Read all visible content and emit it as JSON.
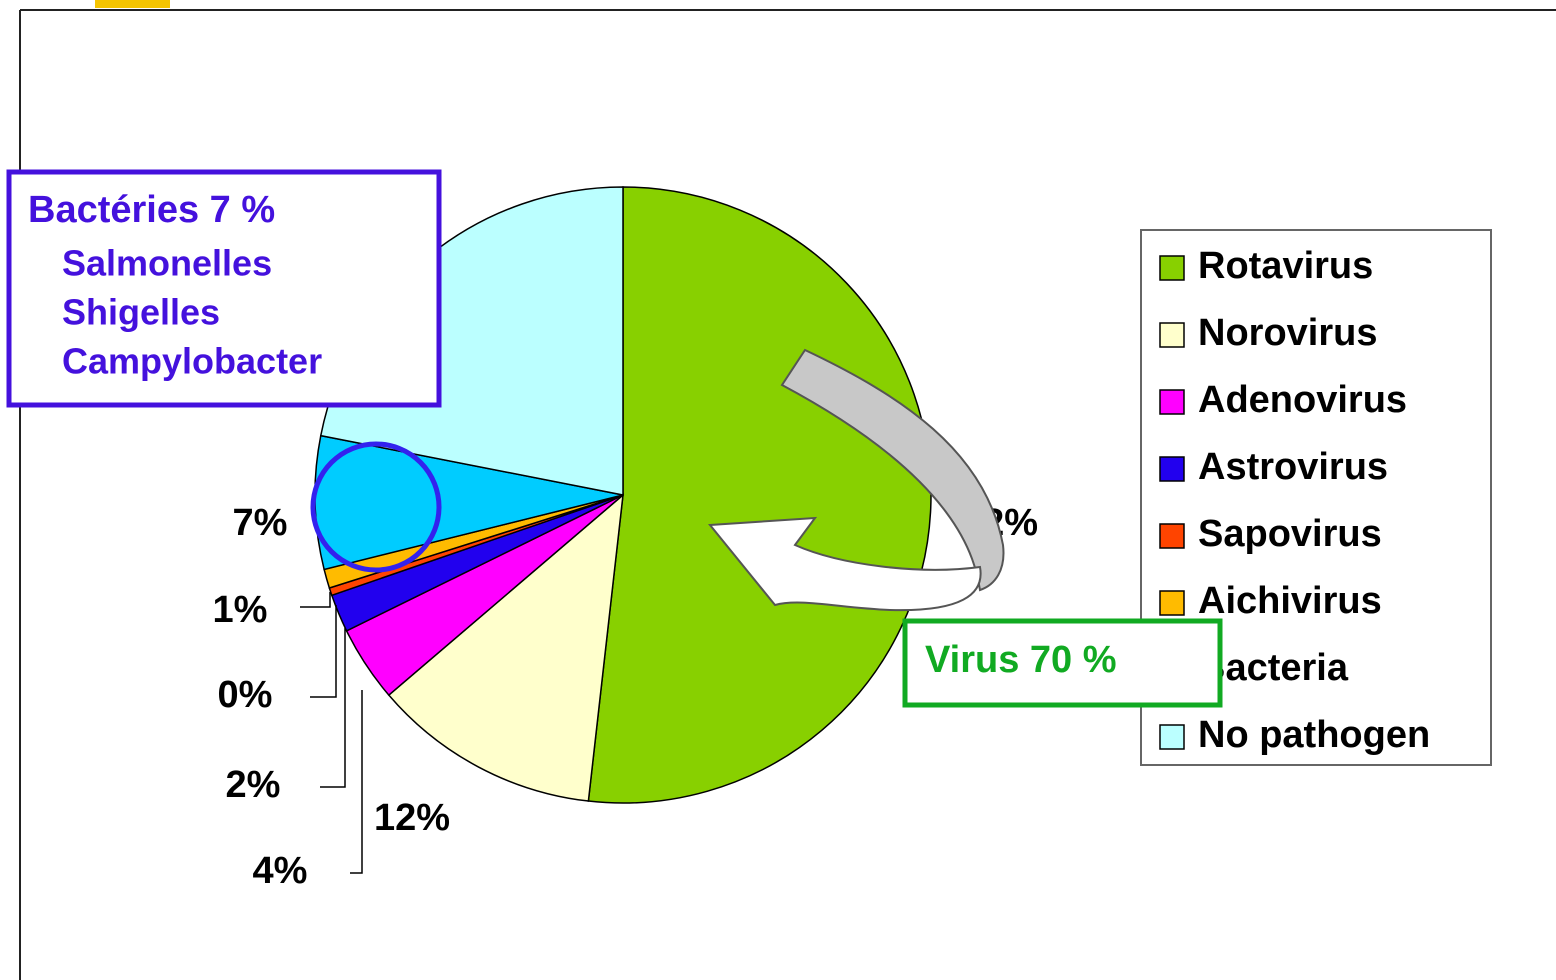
{
  "chart_data": {
    "type": "pie",
    "categories": [
      "Rotavirus",
      "Norovirus",
      "Adenovirus",
      "Astrovirus",
      "Sapovirus",
      "Aichivirus",
      "Bacteria",
      "No pathogen"
    ],
    "values": [
      52,
      12,
      4,
      2,
      0.4,
      1,
      7,
      22
    ],
    "value_labels": [
      "52%",
      "12%",
      "4%",
      "2%",
      "0%",
      "1%",
      "7%",
      null
    ],
    "colors": [
      "#88d000",
      "#ffffcc",
      "#ff00ff",
      "#2200ee",
      "#ff4400",
      "#ffbb00",
      "#00ccff",
      "#bbffff"
    ],
    "legend": "right",
    "annotations": {
      "bacteria_title": "Bactéries 7 %",
      "bacteria_items": [
        "Salmonelles",
        "Shigelles",
        "Campylobacter"
      ],
      "virus": "Virus 70 %"
    }
  }
}
